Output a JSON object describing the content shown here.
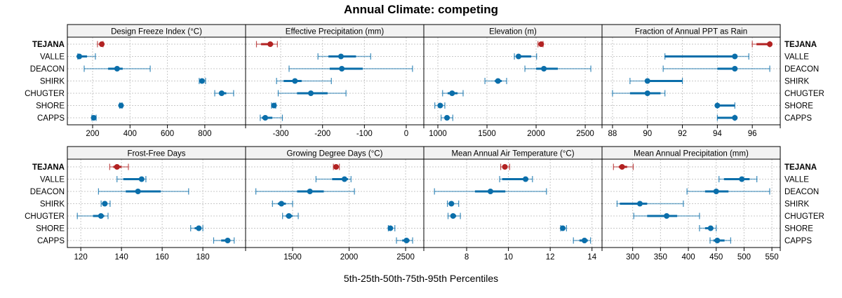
{
  "title": "Annual Climate: competing",
  "xlabel": "5th-25th-50th-75th-95th Percentiles",
  "colors": {
    "highlight": "#b22222",
    "series": "#0a6eaa",
    "grid": "#c8c8c8",
    "strip_bg": "#f2f2f2"
  },
  "chart_data": {
    "type": "dot-interval",
    "title": "Annual Climate: competing",
    "xlabel": "5th-25th-50th-75th-95th Percentiles",
    "grid": true,
    "highlight_site": "TEJANA",
    "sites": [
      "TEJANA",
      "VALLE",
      "DEACON",
      "SHIRK",
      "CHUGTER",
      "SHORE",
      "CAPPS"
    ],
    "quantiles": [
      "p05",
      "p25",
      "p50",
      "p75",
      "p95"
    ],
    "panels": [
      {
        "name": "Design Freeze Index (°C)",
        "xlim": [
          65,
          1018
        ],
        "ticks": [
          200,
          400,
          600,
          800
        ],
        "values": {
          "TEJANA": [
            226,
            240,
            249,
            252,
            256
          ],
          "VALLE": [
            121,
            125,
            129,
            170,
            215
          ],
          "DEACON": [
            155,
            283,
            331,
            361,
            508
          ],
          "SHIRK": [
            770,
            778,
            785,
            795,
            804
          ],
          "CHUGTER": [
            853,
            875,
            890,
            915,
            954
          ],
          "SHORE": [
            345,
            348,
            352,
            355,
            358
          ],
          "CAPPS": [
            196,
            200,
            206,
            212,
            219
          ]
        }
      },
      {
        "name": "Effective Precipitation (mm)",
        "xlim": [
          -384,
          42
        ],
        "ticks": [
          -300,
          -200,
          -100,
          0
        ],
        "values": {
          "TEJANA": [
            -358,
            -347,
            -325,
            -318,
            -308
          ],
          "VALLE": [
            -211,
            -186,
            -156,
            -120,
            -85
          ],
          "DEACON": [
            -280,
            -183,
            -154,
            -104,
            15
          ],
          "SHIRK": [
            -310,
            -293,
            -266,
            -250,
            -179
          ],
          "CHUGTER": [
            -306,
            -261,
            -228,
            -188,
            -144
          ],
          "SHORE": [
            -322,
            -320,
            -316,
            -314,
            -312
          ],
          "CAPPS": [
            -349,
            -345,
            -337,
            -320,
            -296
          ]
        }
      },
      {
        "name": "Elevation (m)",
        "xlim": [
          857,
          2671
        ],
        "ticks": [
          1000,
          1500,
          2000,
          2500
        ],
        "values": {
          "TEJANA": [
            2019,
            2040,
            2052,
            2062,
            2071
          ],
          "VALLE": [
            1779,
            1800,
            1821,
            1950,
            2005
          ],
          "DEACON": [
            1886,
            2000,
            2079,
            2221,
            2557
          ],
          "SHIRK": [
            1479,
            1580,
            1612,
            1650,
            1700
          ],
          "CHUGTER": [
            1048,
            1100,
            1145,
            1200,
            1257
          ],
          "SHORE": [
            969,
            1000,
            1024,
            1045,
            1071
          ],
          "CAPPS": [
            1033,
            1070,
            1093,
            1120,
            1152
          ]
        }
      },
      {
        "name": "Fraction of Annual PPT as Rain",
        "xlim": [
          87.4,
          97.6
        ],
        "ticks": [
          88,
          90,
          92,
          94,
          96
        ],
        "values": {
          "TEJANA": [
            96,
            96.24,
            97,
            97,
            97
          ],
          "VALLE": [
            91,
            91,
            95,
            95,
            95.8
          ],
          "DEACON": [
            90.9,
            94,
            95,
            95,
            97
          ],
          "SHIRK": [
            89,
            90,
            90,
            92,
            92
          ],
          "CHUGTER": [
            88,
            89,
            90,
            90.75,
            91
          ],
          "SHORE": [
            94,
            94,
            94,
            95,
            95
          ],
          "CAPPS": [
            94,
            94,
            95,
            95,
            95
          ]
        }
      },
      {
        "name": "Frost-Free Days",
        "xlim": [
          113.4,
          201.0
        ],
        "ticks": [
          120,
          140,
          160,
          180
        ],
        "values": {
          "TEJANA": [
            134.2,
            136,
            137.8,
            140,
            143.4
          ],
          "VALLE": [
            137.8,
            140.9,
            149.9,
            151,
            152
          ],
          "DEACON": [
            128.7,
            142.1,
            148.1,
            159.3,
            173
          ],
          "SHIRK": [
            130,
            131,
            131.8,
            133,
            134.4
          ],
          "CHUGTER": [
            118.3,
            126,
            129.9,
            131.5,
            133.4
          ],
          "SHORE": [
            174,
            176,
            178,
            179,
            180
          ],
          "CAPPS": [
            185.3,
            189,
            192.2,
            193.5,
            195.4
          ]
        }
      },
      {
        "name": "Growing Degree Days (°C)",
        "xlim": [
          1084,
          2661
        ],
        "ticks": [
          1500,
          2000,
          2500
        ],
        "values": {
          "TEJANA": [
            1861,
            1875,
            1885,
            1895,
            1914
          ],
          "VALLE": [
            1707,
            1850,
            1959,
            1990,
            2017
          ],
          "DEACON": [
            1175,
            1540,
            1653,
            1776,
            2047
          ],
          "SHIRK": [
            1322,
            1370,
            1401,
            1440,
            1500
          ],
          "CHUGTER": [
            1411,
            1440,
            1467,
            1500,
            1550
          ],
          "SHORE": [
            2347,
            2355,
            2365,
            2380,
            2405
          ],
          "CAPPS": [
            2419,
            2470,
            2508,
            2535,
            2562
          ]
        }
      },
      {
        "name": "Mean Annual Air Temperature (°C)",
        "xlim": [
          5.95,
          14.48
        ],
        "ticks": [
          8,
          10,
          12,
          14
        ],
        "values": {
          "TEJANA": [
            9.63,
            9.73,
            9.83,
            9.93,
            10.06
          ],
          "VALLE": [
            9.58,
            9.7,
            10.82,
            10.95,
            11.15
          ],
          "DEACON": [
            6.46,
            8.4,
            9.14,
            9.85,
            11.82
          ],
          "SHIRK": [
            7.08,
            7.18,
            7.27,
            7.4,
            7.62
          ],
          "CHUGTER": [
            7.11,
            7.23,
            7.35,
            7.5,
            7.7
          ],
          "SHORE": [
            12.5,
            12.55,
            12.6,
            12.68,
            12.78
          ],
          "CAPPS": [
            13.11,
            13.4,
            13.64,
            13.8,
            13.93
          ]
        }
      },
      {
        "name": "Mean Annual Precipitation (mm)",
        "xlim": [
          245,
          565
        ],
        "ticks": [
          300,
          350,
          400,
          450,
          500,
          550
        ],
        "values": {
          "TEJANA": [
            265.5,
            275,
            281,
            290,
            301
          ],
          "VALLE": [
            455,
            464,
            496,
            510,
            523
          ],
          "DEACON": [
            397.6,
            430,
            450,
            472,
            546
          ],
          "SHIRK": [
            272,
            277,
            313,
            326,
            391
          ],
          "CHUGTER": [
            302,
            326,
            361,
            380,
            420
          ],
          "SHORE": [
            420,
            430,
            440,
            445,
            450
          ],
          "CAPPS": [
            439,
            445,
            452,
            465,
            476
          ]
        }
      }
    ]
  }
}
